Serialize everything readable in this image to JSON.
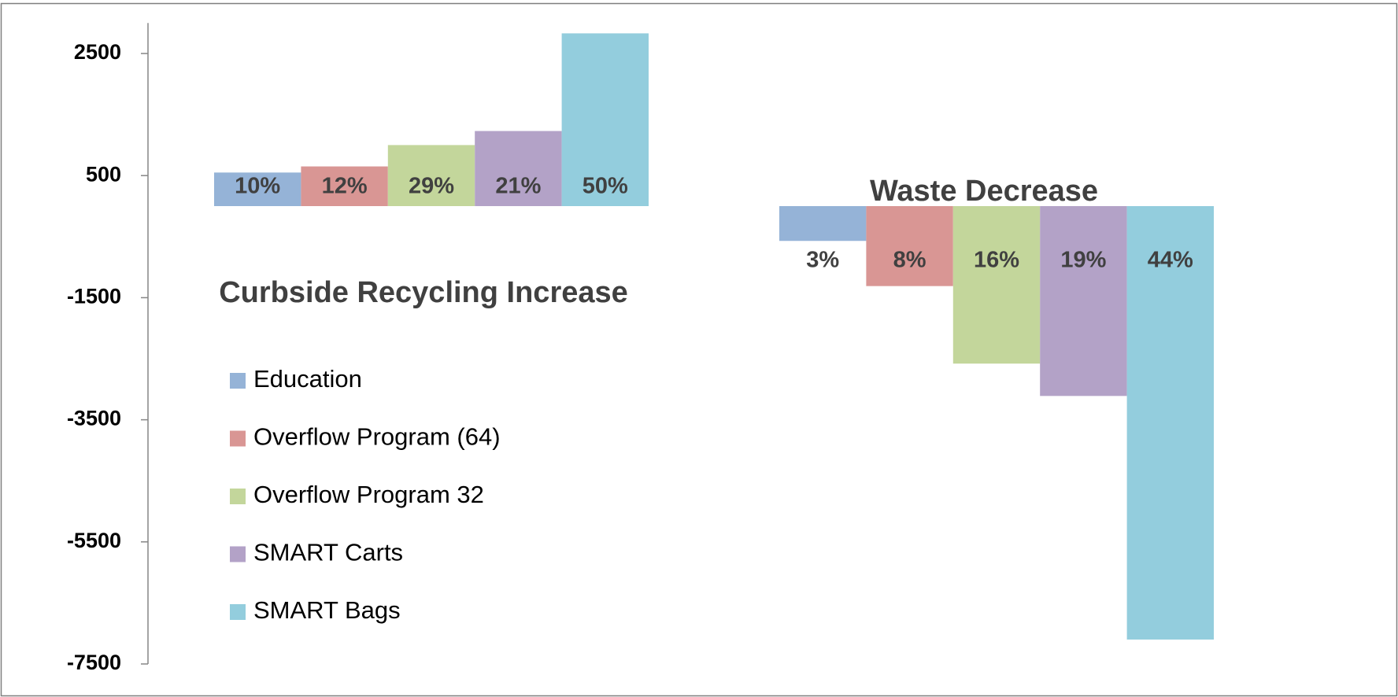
{
  "chart_data": {
    "type": "bar",
    "categories": [
      "Curbside Recycling Increase",
      "Waste Decrease"
    ],
    "series": [
      {
        "name": "Education",
        "color": "#95b3d7",
        "values": [
          550,
          -570
        ],
        "value_labels": [
          "10%",
          "3%"
        ]
      },
      {
        "name": "Overflow Program (64)",
        "color": "#d99694",
        "values": [
          650,
          -1310
        ],
        "value_labels": [
          "12%",
          "8%"
        ]
      },
      {
        "name": "Overflow Program 32",
        "color": "#c3d69b",
        "values": [
          1000,
          -2580
        ],
        "value_labels": [
          "29%",
          "16%"
        ]
      },
      {
        "name": "SMART Carts",
        "color": "#b3a2c7",
        "values": [
          1230,
          -3110
        ],
        "value_labels": [
          "21%",
          "19%"
        ]
      },
      {
        "name": "SMART Bags",
        "color": "#93cddd",
        "values": [
          2830,
          -7100
        ],
        "value_labels": [
          "50%",
          "44%"
        ]
      }
    ],
    "ylim": [
      -7500,
      3000
    ],
    "yticks": [
      2500,
      500,
      -1500,
      -3500,
      -5500,
      -7500
    ],
    "grid": false
  }
}
